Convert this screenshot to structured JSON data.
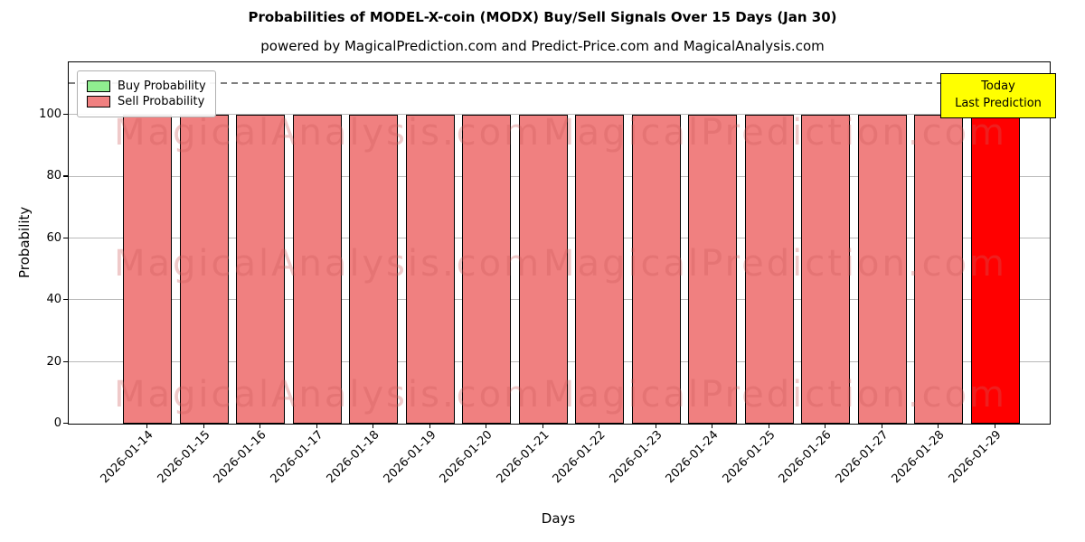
{
  "chart_data": {
    "type": "bar",
    "title": "Probabilities of MODEL-X-coin (MODX) Buy/Sell Signals Over 15 Days (Jan 30)",
    "subtitle": "powered by MagicalPrediction.com and Predict-Price.com and MagicalAnalysis.com",
    "xlabel": "Days",
    "ylabel": "Probability",
    "categories": [
      "2026-01-14",
      "2026-01-15",
      "2026-01-16",
      "2026-01-17",
      "2026-01-18",
      "2026-01-19",
      "2026-01-20",
      "2026-01-21",
      "2026-01-22",
      "2026-01-23",
      "2026-01-24",
      "2026-01-25",
      "2026-01-26",
      "2026-01-27",
      "2026-01-28",
      "2026-01-29"
    ],
    "series": [
      {
        "name": "Buy Probability",
        "color": "#90EE90",
        "values": [
          0,
          0,
          0,
          0,
          0,
          0,
          0,
          0,
          0,
          0,
          0,
          0,
          0,
          0,
          0,
          0
        ]
      },
      {
        "name": "Sell Probability",
        "color": "#F08080",
        "values": [
          100,
          100,
          100,
          100,
          100,
          100,
          100,
          100,
          100,
          100,
          100,
          100,
          100,
          100,
          100,
          100
        ]
      }
    ],
    "highlight": {
      "index": 15,
      "color": "#FF0000",
      "box_color": "#FFFF00",
      "labels": [
        "Today",
        "Last Prediction"
      ]
    },
    "ylim": [
      0,
      117
    ],
    "yticks": [
      0,
      20,
      40,
      60,
      80,
      100
    ],
    "dashed_line_y": 110,
    "grid": true,
    "legend_position": "upper left",
    "watermarks": [
      "MagicalAnalysis.com",
      "MagicalPrediction.com"
    ]
  }
}
